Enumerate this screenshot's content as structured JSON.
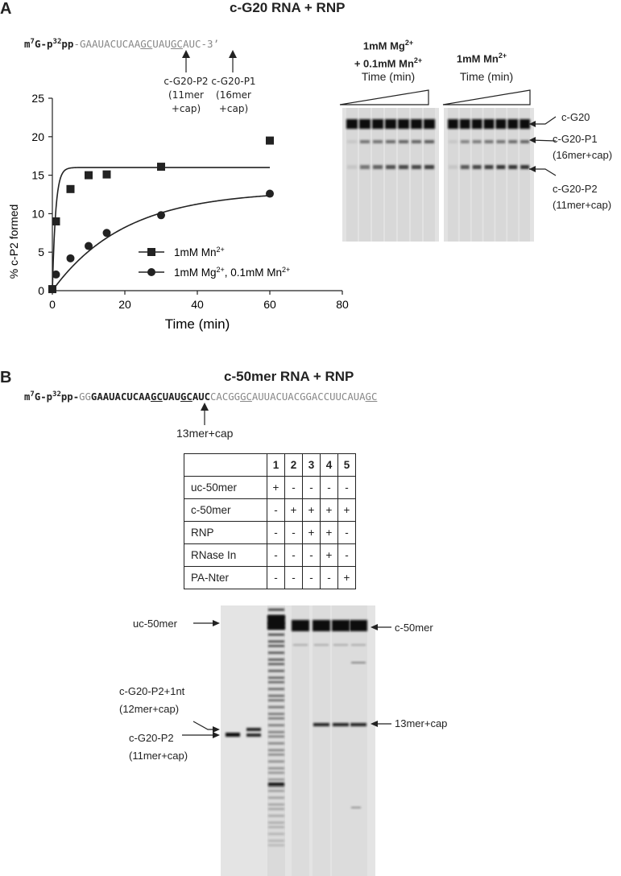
{
  "panelA": {
    "letter": "A",
    "title": "c-G20 RNA + RNP",
    "seq": {
      "prefix_m": "m",
      "prefix_sup7": "7",
      "prefix_g": "G-p",
      "prefix_sup32": "32",
      "prefix_pp": "pp",
      "dash": "-",
      "part1": "GAAUACUCAA",
      "part2": "GC",
      "part3": "UAU",
      "part4": "GC",
      "part5": "AUC-3’"
    },
    "annot_p2": [
      "c-G20-P2",
      "(11mer",
      "+cap)"
    ],
    "annot_p1": [
      "c-G20-P1",
      "(16mer",
      "+cap)"
    ],
    "gel_cond1_line1": "1mM Mg",
    "gel_cond1_sup1": "2+",
    "gel_cond1_line2": "+ 0.1mM Mn",
    "gel_cond1_sup2": "2+",
    "gel_cond2": "1mM Mn",
    "gel_cond2_sup": "2+",
    "gel_time1": "Time (min)",
    "gel_time2": "Time (min)",
    "band_cg20": "c-G20",
    "band_p1": [
      "c-G20-P1",
      "(16mer+cap)"
    ],
    "band_p2": [
      "c-G20-P2",
      "(11mer+cap)"
    ],
    "legend1": "1mM Mn",
    "legend1_sup": "2+",
    "legend2a": "1mM Mg",
    "legend2a_sup": "2+",
    "legend2b": ", 0.1mM Mn",
    "legend2b_sup": "2+"
  },
  "chart_data": {
    "type": "scatter",
    "title": "",
    "xlabel": "Time (min)",
    "ylabel": "% c-P2 formed",
    "xlim": [
      0,
      80
    ],
    "ylim": [
      0,
      25
    ],
    "xticks": [
      "0",
      "20",
      "40",
      "60",
      "80"
    ],
    "yticks": [
      "0",
      "5",
      "10",
      "15",
      "20",
      "25"
    ],
    "series": [
      {
        "name": "1mM Mn2+",
        "marker": "square",
        "x": [
          0,
          1,
          5,
          10,
          15,
          30,
          60
        ],
        "y": [
          0.2,
          9.0,
          13.2,
          15.0,
          15.1,
          16.1,
          19.5
        ],
        "fit": {
          "model": "single-exponential",
          "ymax": 16.0,
          "k": 1.1
        }
      },
      {
        "name": "1mM Mg2+, 0.1mM Mn2+",
        "marker": "circle",
        "x": [
          0,
          1,
          5,
          10,
          15,
          30,
          60
        ],
        "y": [
          0.2,
          2.1,
          4.2,
          5.8,
          7.5,
          9.8,
          12.6
        ],
        "fit": {
          "model": "single-exponential",
          "ymax": 13.0,
          "k": 0.05
        }
      }
    ]
  },
  "panelB": {
    "letter": "B",
    "title": "c-50mer RNA + RNP",
    "seq": {
      "prefix_m": "m",
      "prefix_sup7": "7",
      "prefix_g": "G-p",
      "prefix_sup32": "32",
      "prefix_pp": "pp-",
      "gg": "GG",
      "b1": "GAAUACUCAA",
      "b2": "GC",
      "b3": "UAU",
      "b4": "GC",
      "b5": "AUC",
      "g1": "CACGG",
      "g2": "GC",
      "g3": "AUUACUACGGACCUUCAUA",
      "g4": "GC"
    },
    "annot": "13mer+cap",
    "table": {
      "lanes": [
        "1",
        "2",
        "3",
        "4",
        "5"
      ],
      "rows": [
        {
          "label": "uc-50mer",
          "vals": [
            "+",
            "-",
            "-",
            "-",
            "-"
          ]
        },
        {
          "label": "c-50mer",
          "vals": [
            "-",
            "+",
            "+",
            "+",
            "+"
          ]
        },
        {
          "label": "RNP",
          "vals": [
            "-",
            "-",
            "+",
            "+",
            "-"
          ]
        },
        {
          "label": "RNase In",
          "vals": [
            "-",
            "-",
            "-",
            "+",
            "-"
          ]
        },
        {
          "label": "PA-Nter",
          "vals": [
            "-",
            "-",
            "-",
            "-",
            "+"
          ]
        }
      ]
    },
    "gel_uc50": "uc-50mer",
    "gel_c50": "c-50mer",
    "gel_p2plus": [
      "c-G20-P2+1nt",
      "(12mer+cap)"
    ],
    "gel_p2": [
      "c-G20-P2",
      "(11mer+cap)"
    ],
    "gel_13mer": "13mer+cap"
  }
}
